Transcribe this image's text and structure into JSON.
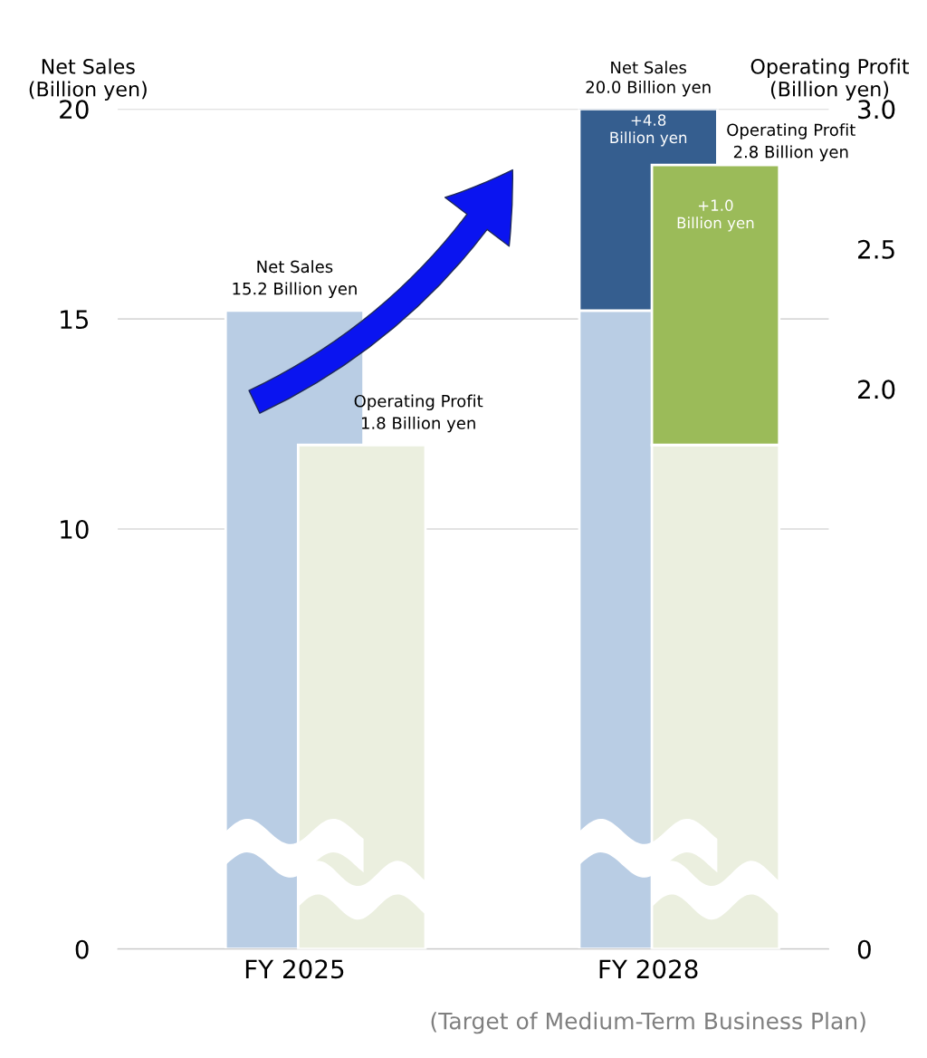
{
  "chart_data": {
    "type": "bar",
    "stacked": true,
    "categories": [
      "FY 2025",
      "FY 2028"
    ],
    "ylabel": "Net Sales\n(Billion yen)",
    "y2label": "Operating Profit\n(Billion yen)",
    "series": [
      {
        "color": "#b9cde4",
        "values": [
          15.2,
          15.2
        ],
        "value_labels": [
          "Net Sales\n15.2 Billion yen",
          null
        ]
      },
      {
        "color": "#355e8f",
        "values": [
          null,
          4.8
        ],
        "value_labels": [
          null,
          "+4.8\nBillion yen"
        ]
      },
      {
        "color": "#ebefdf",
        "values": [
          1.8,
          1.8
        ],
        "axis": "y2",
        "value_labels": [
          "Operating Profit\n1.8 Billion yen",
          null
        ]
      },
      {
        "color": "#9bbb59",
        "values": [
          null,
          1.0
        ],
        "axis": "y2",
        "value_labels": [
          null,
          "+1.0\nBillion yen"
        ]
      }
    ],
    "totals": [
      null,
      "Net Sales\n20.0 Billion yen"
    ],
    "annotations": [
      "(Target of Medium-Term Business Plan)",
      "Operating Profit\n2.8 Billion yen"
    ],
    "ylim": [
      0,
      20
    ],
    "yticks": [
      0,
      10,
      15,
      20
    ],
    "y2lim": [
      0,
      3.0
    ],
    "y2ticks": [
      0,
      {
        "value": 2.0,
        "label": "2.0"
      },
      2.5,
      {
        "value": 3.0,
        "label": "3.0"
      }
    ],
    "grid": "y",
    "legend": false
  }
}
